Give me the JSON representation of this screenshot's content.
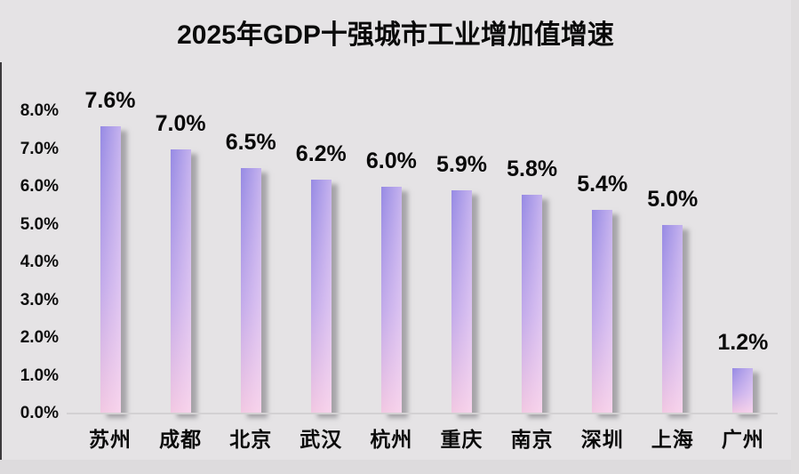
{
  "chart_data": {
    "type": "bar",
    "title": "2025年GDP十强城市工业增加值增速",
    "categories": [
      "苏州",
      "成都",
      "北京",
      "武汉",
      "杭州",
      "重庆",
      "南京",
      "深圳",
      "上海",
      "广州"
    ],
    "values": [
      7.6,
      7.0,
      6.5,
      6.2,
      6.0,
      5.9,
      5.8,
      5.4,
      5.0,
      1.2
    ],
    "value_labels": [
      "7.6%",
      "7.0%",
      "6.5%",
      "6.2%",
      "6.0%",
      "5.9%",
      "5.8%",
      "5.4%",
      "5.0%",
      "1.2%"
    ],
    "y_tick_labels": [
      "0.0%",
      "1.0%",
      "2.0%",
      "3.0%",
      "4.0%",
      "5.0%",
      "6.0%",
      "7.0%",
      "8.0%"
    ],
    "ylim": [
      0,
      8
    ],
    "grid": false,
    "legend": null,
    "xlabel": "",
    "ylabel": "",
    "colors": {
      "bar_gradient_top": "#968ae4",
      "bar_gradient_mid": "#c2aaea",
      "bar_gradient_bottom": "#f2c8e2",
      "background": "#e5e3e5",
      "axis_line": "#d3d1d3",
      "text": "#0a0a0a",
      "shadow": "#737176"
    }
  }
}
